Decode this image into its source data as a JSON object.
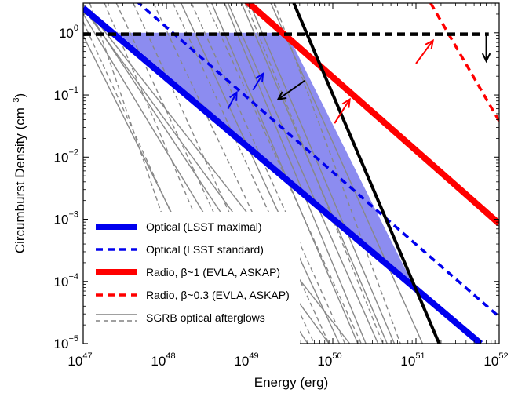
{
  "chart_data": {
    "type": "line",
    "xlabel": "Energy  (erg)",
    "ylabel": "Circumburst Density  (cm",
    "ylabel_exp": "−3",
    "ylabel_close": ")",
    "xscale": "log",
    "yscale": "log",
    "xlim": [
      1e+47,
      1e+52
    ],
    "ylim": [
      1e-05,
      3
    ],
    "x_ticks": [
      {
        "base": "10",
        "exp": "47",
        "value": 1e+47
      },
      {
        "base": "10",
        "exp": "48",
        "value": 1e+48
      },
      {
        "base": "10",
        "exp": "49",
        "value": 1e+49
      },
      {
        "base": "10",
        "exp": "50",
        "value": 1e+50
      },
      {
        "base": "10",
        "exp": "51",
        "value": 1e+51
      },
      {
        "base": "10",
        "exp": "52",
        "value": 1e+52
      }
    ],
    "y_ticks": [
      {
        "base": "10",
        "exp": "0",
        "value": 1
      },
      {
        "base": "10",
        "exp": "−1",
        "value": 0.1
      },
      {
        "base": "10",
        "exp": "−2",
        "value": 0.01
      },
      {
        "base": "10",
        "exp": "−3",
        "value": 0.001
      },
      {
        "base": "10",
        "exp": "−4",
        "value": 0.0001
      },
      {
        "base": "10",
        "exp": "−5",
        "value": 1e-05
      }
    ],
    "grid": false,
    "legend_position": "bottom-left",
    "shaded_region": {
      "color": "#8c8cf0",
      "points": [
        [
          2.6e+47,
          1.0
        ],
        [
          2.8e+49,
          1.0
        ],
        [
          9e+50,
          9.5e-05
        ]
      ]
    },
    "series": [
      {
        "name": "Optical (LSST maximal)",
        "color": "#0000ee",
        "style": "solid",
        "width": 8,
        "points": [
          [
            1e+47,
            2.5
          ],
          [
            6e+51,
            1e-05
          ]
        ]
      },
      {
        "name": "Optical (LSST standard)",
        "color": "#0000ee",
        "style": "dashed",
        "width": 3.5,
        "points": [
          [
            1e+47,
            18.0
          ],
          [
            1e+52,
            2.7e-05
          ]
        ]
      },
      {
        "name": "Radio, β~1 (EVLA, ASKAP)",
        "color": "#ff0000",
        "style": "solid",
        "width": 8,
        "points": [
          [
            8e+48,
            3.8
          ],
          [
            1e+52,
            0.00085
          ]
        ]
      },
      {
        "name": "Radio, β~0.3 (EVLA, ASKAP)",
        "color": "#ff0000",
        "style": "dashed",
        "width": 3.5,
        "points": [
          [
            1.5e+51,
            3.0
          ],
          [
            1e+52,
            0.038
          ]
        ]
      },
      {
        "name": "SGRB optical afterglows",
        "color": "#808080",
        "style": "mixed",
        "width": 1.5,
        "points": []
      },
      {
        "name": "",
        "color": "#000000",
        "style": "solid",
        "width": 4,
        "points": [
          [
            3.4e+49,
            3.0
          ],
          [
            1.9e+51,
            1e-05
          ]
        ]
      },
      {
        "name": "",
        "color": "#000000",
        "style": "dashed",
        "width": 4.5,
        "points": [
          [
            1e+47,
            0.95
          ],
          [
            7.5e+51,
            0.95
          ]
        ]
      }
    ],
    "afterglow_lines": [
      {
        "style": "solid",
        "points": [
          [
            1e+47,
            2.9
          ],
          [
            1.6e+50,
            1e-05
          ]
        ]
      },
      {
        "style": "solid",
        "points": [
          [
            1.5e+48,
            3.0
          ],
          [
            1.2e+50,
            1e-05
          ]
        ]
      },
      {
        "style": "solid",
        "points": [
          [
            3.5e+48,
            3.0
          ],
          [
            2e+50,
            1e-05
          ]
        ]
      },
      {
        "style": "solid",
        "points": [
          [
            5.5e+48,
            3.0
          ],
          [
            3.5e+50,
            1e-05
          ]
        ]
      },
      {
        "style": "solid",
        "points": [
          [
            1e+49,
            3.0
          ],
          [
            5.5e+50,
            1e-05
          ]
        ]
      },
      {
        "style": "solid",
        "points": [
          [
            1.8e+49,
            3.0
          ],
          [
            1.2e+51,
            1e-05
          ]
        ]
      },
      {
        "style": "solid",
        "points": [
          [
            1e+47,
            0.9
          ],
          [
            7e+48,
            1e-05
          ]
        ]
      },
      {
        "style": "solid",
        "points": [
          [
            1e+47,
            2.0
          ],
          [
            2.5e+49,
            1e-05
          ]
        ]
      },
      {
        "style": "solid",
        "points": [
          [
            1e+47,
            2.8
          ],
          [
            5e+49,
            1e-05
          ]
        ]
      },
      {
        "style": "solid",
        "points": [
          [
            1e+47,
            2.5
          ],
          [
            9e+49,
            1e-05
          ]
        ]
      },
      {
        "style": "solid",
        "points": [
          [
            5e+48,
            3.0
          ],
          [
            2.5e+50,
            1e-05
          ]
        ]
      },
      {
        "style": "solid",
        "points": [
          [
            8e+48,
            3.0
          ],
          [
            4.5e+50,
            1e-05
          ]
        ]
      },
      {
        "style": "dashed",
        "points": [
          [
            1.2e+47,
            3.0
          ],
          [
            3e+48,
            1e-05
          ]
        ]
      },
      {
        "style": "dashed",
        "points": [
          [
            1e+47,
            1.5
          ],
          [
            6e+48,
            1e-05
          ]
        ]
      },
      {
        "style": "dashed",
        "points": [
          [
            1.8e+47,
            3.0
          ],
          [
            1e+49,
            1e-05
          ]
        ]
      },
      {
        "style": "dashed",
        "points": [
          [
            2.5e+47,
            3.0
          ],
          [
            2e+49,
            1e-05
          ]
        ]
      },
      {
        "style": "dashed",
        "points": [
          [
            4e+47,
            3.0
          ],
          [
            3e+49,
            1e-05
          ]
        ]
      },
      {
        "style": "dashed",
        "points": [
          [
            7e+47,
            3.0
          ],
          [
            6e+49,
            1e-05
          ]
        ]
      },
      {
        "style": "dashed",
        "points": [
          [
            1.2e+48,
            3.0
          ],
          [
            9e+49,
            1e-05
          ]
        ]
      },
      {
        "style": "dashed",
        "points": [
          [
            2e+48,
            3.0
          ],
          [
            1.4e+50,
            1e-05
          ]
        ]
      },
      {
        "style": "dashed",
        "points": [
          [
            3e+48,
            3.0
          ],
          [
            2.2e+50,
            1e-05
          ]
        ]
      },
      {
        "style": "dashed",
        "points": [
          [
            9e+48,
            3.0
          ],
          [
            4e+50,
            1e-05
          ]
        ]
      },
      {
        "style": "dashed",
        "points": [
          [
            2e+49,
            3.0
          ],
          [
            6.5e+50,
            1e-05
          ]
        ]
      }
    ],
    "arrows": [
      {
        "color": "#0000ee",
        "from": [
          5.5e+48,
          0.06
        ],
        "to": [
          7e+48,
          0.11
        ]
      },
      {
        "color": "#0000ee",
        "from": [
          1.1e+49,
          0.12
        ],
        "to": [
          1.45e+49,
          0.22
        ]
      },
      {
        "color": "#000000",
        "from": [
          4.6e+49,
          0.17
        ],
        "to": [
          2.2e+49,
          0.085
        ]
      },
      {
        "color": "#ff0000",
        "from": [
          1.05e+50,
          0.035
        ],
        "to": [
          1.6e+50,
          0.085
        ]
      },
      {
        "color": "#ff0000",
        "from": [
          1e+51,
          0.32
        ],
        "to": [
          1.6e+51,
          0.75
        ]
      },
      {
        "color": "#000000",
        "from": [
          7e+51,
          0.95
        ],
        "to": [
          7e+51,
          0.35
        ]
      }
    ]
  }
}
